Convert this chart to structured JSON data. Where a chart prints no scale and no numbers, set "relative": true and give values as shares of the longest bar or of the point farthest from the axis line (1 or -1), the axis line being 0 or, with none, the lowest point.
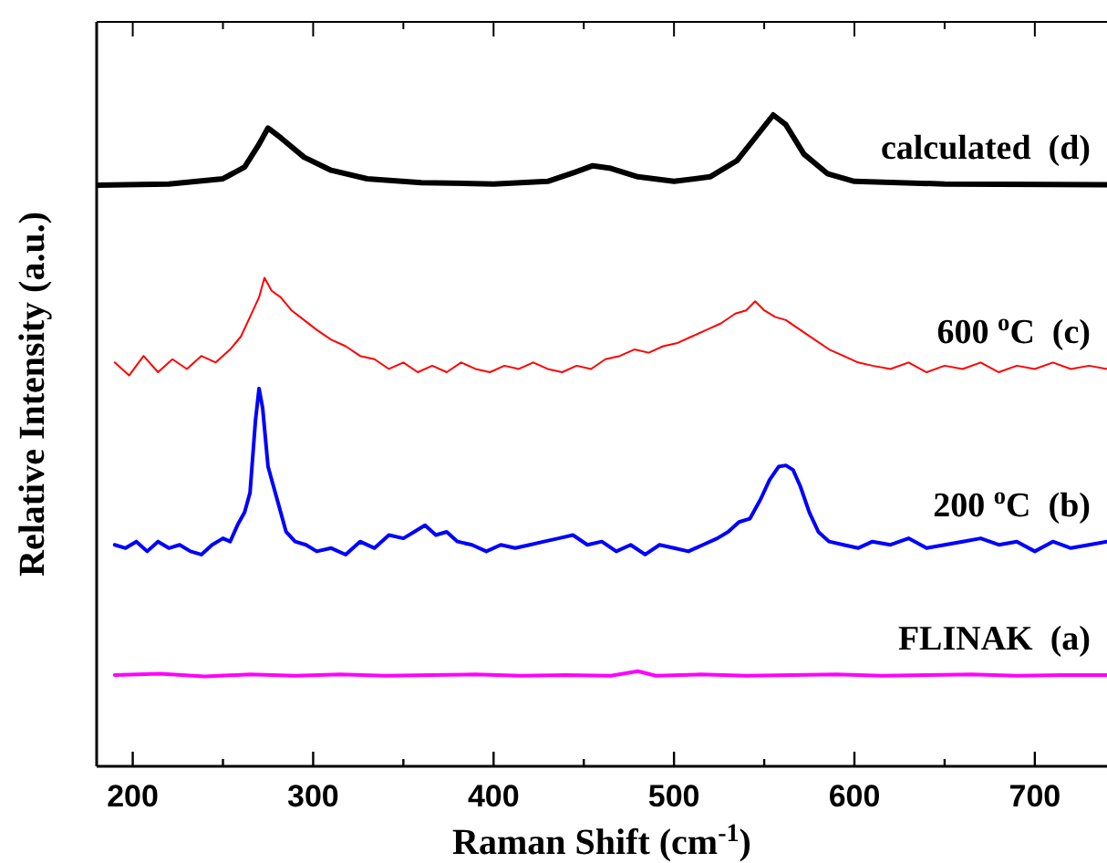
{
  "chart_data": {
    "type": "line",
    "relative": true,
    "xlabel": "Raman Shift (cm$^{-1}$)",
    "ylabel": "Relative Intensity (a.u.)",
    "xlim": [
      180,
      740
    ],
    "xticks": [
      200,
      {
        "value": 250,
        "label": null
      },
      300,
      {
        "value": 350,
        "label": null
      },
      400,
      {
        "value": 450,
        "label": null
      },
      500,
      {
        "value": 550,
        "label": null
      },
      600,
      {
        "value": 650,
        "label": null
      },
      700
    ],
    "grid": false,
    "marker": "none",
    "line_style": "solid",
    "series": [
      {
        "name": "calculated  (d)",
        "color": "#000000",
        "x": [
          180,
          220,
          250,
          262,
          270,
          275,
          282,
          295,
          310,
          330,
          360,
          400,
          430,
          445,
          455,
          465,
          480,
          500,
          520,
          535,
          545,
          555,
          562,
          572,
          585,
          600,
          650,
          740
        ],
        "values": [
          0.892,
          0.894,
          0.902,
          0.92,
          0.955,
          0.98,
          0.965,
          0.935,
          0.915,
          0.902,
          0.896,
          0.894,
          0.898,
          0.912,
          0.922,
          0.918,
          0.905,
          0.898,
          0.905,
          0.93,
          0.965,
          1.0,
          0.985,
          0.94,
          0.91,
          0.898,
          0.894,
          0.893
        ]
      },
      {
        "name": "600 $^{o}$C  (c)",
        "color": "#ff0000",
        "x": [
          190,
          198,
          206,
          214,
          222,
          230,
          238,
          246,
          254,
          260,
          265,
          270,
          273,
          277,
          282,
          288,
          295,
          302,
          310,
          318,
          326,
          334,
          342,
          350,
          358,
          366,
          374,
          382,
          390,
          398,
          406,
          414,
          422,
          430,
          438,
          446,
          454,
          462,
          470,
          478,
          486,
          494,
          502,
          510,
          518,
          526,
          534,
          540,
          545,
          550,
          556,
          562,
          570,
          578,
          586,
          594,
          602,
          610,
          620,
          630,
          640,
          650,
          660,
          670,
          680,
          690,
          700,
          710,
          720,
          730,
          740
        ],
        "values": [
          0.62,
          0.6,
          0.63,
          0.605,
          0.625,
          0.61,
          0.63,
          0.62,
          0.64,
          0.66,
          0.69,
          0.72,
          0.75,
          0.73,
          0.72,
          0.7,
          0.685,
          0.67,
          0.655,
          0.645,
          0.63,
          0.625,
          0.61,
          0.62,
          0.605,
          0.615,
          0.605,
          0.62,
          0.61,
          0.605,
          0.615,
          0.61,
          0.62,
          0.61,
          0.605,
          0.615,
          0.61,
          0.625,
          0.63,
          0.64,
          0.635,
          0.645,
          0.65,
          0.66,
          0.67,
          0.68,
          0.695,
          0.7,
          0.714,
          0.7,
          0.69,
          0.685,
          0.67,
          0.655,
          0.64,
          0.63,
          0.62,
          0.615,
          0.61,
          0.62,
          0.605,
          0.615,
          0.61,
          0.62,
          0.605,
          0.615,
          0.61,
          0.62,
          0.61,
          0.615,
          0.61
        ]
      },
      {
        "name": "200 $^{o}$C  (b)",
        "color": "#0000ff",
        "x": [
          190,
          196,
          202,
          208,
          214,
          220,
          226,
          232,
          238,
          244,
          250,
          254,
          258,
          262,
          265,
          268,
          270,
          272,
          275,
          278,
          281,
          285,
          290,
          296,
          302,
          310,
          318,
          326,
          334,
          342,
          350,
          356,
          362,
          368,
          374,
          380,
          388,
          396,
          404,
          412,
          420,
          428,
          436,
          444,
          452,
          460,
          468,
          476,
          484,
          492,
          500,
          508,
          516,
          524,
          530,
          536,
          542,
          548,
          553,
          558,
          562,
          566,
          570,
          575,
          580,
          586,
          594,
          602,
          610,
          620,
          630,
          640,
          650,
          660,
          670,
          680,
          690,
          700,
          710,
          720,
          730,
          740
        ],
        "values": [
          0.34,
          0.335,
          0.345,
          0.33,
          0.345,
          0.335,
          0.34,
          0.33,
          0.325,
          0.34,
          0.35,
          0.345,
          0.37,
          0.39,
          0.42,
          0.53,
          0.58,
          0.55,
          0.46,
          0.43,
          0.4,
          0.36,
          0.345,
          0.34,
          0.33,
          0.335,
          0.325,
          0.345,
          0.335,
          0.355,
          0.35,
          0.36,
          0.37,
          0.355,
          0.36,
          0.345,
          0.34,
          0.33,
          0.34,
          0.335,
          0.34,
          0.345,
          0.35,
          0.355,
          0.34,
          0.345,
          0.33,
          0.34,
          0.325,
          0.34,
          0.335,
          0.33,
          0.34,
          0.35,
          0.36,
          0.375,
          0.38,
          0.41,
          0.44,
          0.46,
          0.462,
          0.455,
          0.43,
          0.39,
          0.36,
          0.345,
          0.34,
          0.335,
          0.345,
          0.34,
          0.35,
          0.335,
          0.34,
          0.345,
          0.35,
          0.34,
          0.345,
          0.33,
          0.345,
          0.335,
          0.34,
          0.345
        ]
      },
      {
        "name": "FLINAK  (a)",
        "color": "#ff00ff",
        "x": [
          190,
          215,
          240,
          265,
          290,
          315,
          340,
          365,
          390,
          415,
          440,
          465,
          480,
          490,
          515,
          540,
          565,
          590,
          615,
          640,
          665,
          690,
          715,
          740
        ],
        "values": [
          0.14,
          0.142,
          0.138,
          0.141,
          0.139,
          0.141,
          0.139,
          0.14,
          0.141,
          0.139,
          0.14,
          0.139,
          0.146,
          0.139,
          0.141,
          0.139,
          0.14,
          0.141,
          0.139,
          0.14,
          0.141,
          0.139,
          0.14,
          0.14
        ]
      }
    ]
  }
}
